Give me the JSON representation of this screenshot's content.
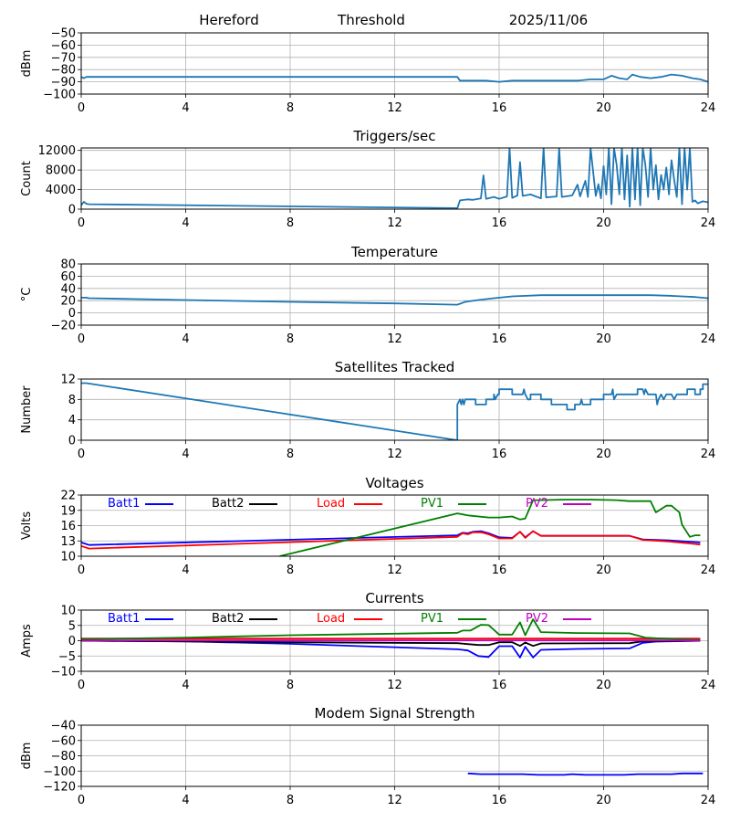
{
  "header": {
    "station": "Hereford",
    "mode": "Threshold",
    "date": "2025/11/06"
  },
  "x_axis": {
    "range": [
      0,
      24
    ],
    "ticks": [
      0,
      4,
      8,
      12,
      16,
      20,
      24
    ],
    "tick_labels": [
      "0",
      "4",
      "8",
      "12",
      "16",
      "20",
      "24"
    ]
  },
  "chart_data": [
    {
      "id": "threshold",
      "type": "line",
      "title": "",
      "ylabel": "dBm",
      "ylim": [
        -100,
        -50
      ],
      "yticks": [
        -50,
        -60,
        -70,
        -80,
        -90,
        -100
      ],
      "ytick_labels": [
        "−50",
        "−60",
        "−70",
        "−80",
        "−90",
        "−100"
      ],
      "legend": [],
      "series": [
        {
          "name": "Threshold",
          "color": "#1f77b4",
          "x": [
            0,
            0.1,
            0.2,
            14.4,
            14.5,
            15,
            15.5,
            16,
            16.5,
            17,
            17.5,
            18,
            18.5,
            19,
            19.5,
            20,
            20.3,
            20.6,
            20.9,
            21.1,
            21.4,
            21.8,
            22.2,
            22.6,
            23,
            23.4,
            23.7,
            24
          ],
          "y": [
            -86,
            -87,
            -86,
            -86,
            -89,
            -89,
            -89,
            -90,
            -89,
            -89,
            -89,
            -89,
            -89,
            -89,
            -88,
            -88,
            -85,
            -87,
            -88,
            -84,
            -86,
            -87,
            -86,
            -84,
            -85,
            -87,
            -88,
            -90
          ]
        }
      ]
    },
    {
      "id": "triggers",
      "type": "line",
      "title": "Triggers/sec",
      "ylabel": "Count",
      "ylim": [
        0,
        12500
      ],
      "yticks": [
        0,
        4000,
        8000,
        12000
      ],
      "ytick_labels": [
        "0",
        "4000",
        "8000",
        "12000"
      ],
      "legend": [],
      "series": [
        {
          "name": "Triggers",
          "color": "#1f77b4",
          "x": [
            0,
            0.1,
            0.2,
            0.3,
            14.4,
            14.5,
            14.8,
            15.0,
            15.3,
            15.4,
            15.5,
            15.8,
            16.0,
            16.3,
            16.4,
            16.5,
            16.7,
            16.8,
            16.9,
            17.2,
            17.6,
            17.7,
            17.8,
            18.2,
            18.3,
            18.4,
            18.8,
            19.0,
            19.1,
            19.3,
            19.4,
            19.5,
            19.7,
            19.8,
            19.9,
            20.0,
            20.1,
            20.2,
            20.3,
            20.4,
            20.5,
            20.6,
            20.7,
            20.8,
            20.9,
            21.0,
            21.1,
            21.2,
            21.3,
            21.4,
            21.5,
            21.6,
            21.7,
            21.8,
            21.9,
            22.0,
            22.1,
            22.2,
            22.3,
            22.4,
            22.5,
            22.6,
            22.7,
            22.8,
            22.9,
            23.0,
            23.1,
            23.2,
            23.3,
            23.4,
            23.5,
            23.6,
            23.8,
            24.0
          ],
          "y": [
            800,
            1500,
            1100,
            1000,
            200,
            1800,
            2000,
            1900,
            2200,
            6900,
            2100,
            2500,
            2100,
            2600,
            12500,
            2300,
            2800,
            9600,
            2700,
            3000,
            2200,
            12500,
            2400,
            2600,
            12500,
            2500,
            2800,
            5000,
            2600,
            5800,
            2500,
            12500,
            2700,
            5100,
            2200,
            8800,
            3000,
            12500,
            1000,
            12500,
            9000,
            3000,
            12500,
            2000,
            11000,
            500,
            12500,
            2000,
            12500,
            800,
            12500,
            9000,
            2500,
            12500,
            4000,
            9000,
            2000,
            7000,
            4000,
            8500,
            3000,
            10000,
            6000,
            2500,
            12500,
            1000,
            12500,
            4000,
            12500,
            1500,
            1800,
            1200,
            1600,
            1400
          ]
        }
      ]
    },
    {
      "id": "temperature",
      "type": "line",
      "title": "Temperature",
      "ylabel": "°C",
      "ylim": [
        -20,
        80
      ],
      "yticks": [
        -20,
        0,
        20,
        40,
        60,
        80
      ],
      "ytick_labels": [
        "−20",
        "0",
        "20",
        "40",
        "60",
        "80"
      ],
      "legend": [],
      "series": [
        {
          "name": "Temperature",
          "color": "#1f77b4",
          "x": [
            0,
            0.2,
            0.3,
            4,
            8,
            12,
            14.4,
            14.7,
            15.2,
            15.8,
            16.5,
            17.6,
            18.5,
            20,
            21,
            21.8,
            22.5,
            23,
            23.5,
            24
          ],
          "y": [
            25,
            25,
            24,
            21,
            18,
            15.5,
            13.5,
            18,
            21,
            24,
            27,
            29,
            29,
            29,
            29,
            29,
            28,
            27,
            26,
            24
          ]
        }
      ]
    },
    {
      "id": "satellites",
      "type": "line",
      "title": "Satellites Tracked",
      "ylabel": "Number",
      "ylim": [
        0,
        12
      ],
      "yticks": [
        0,
        4,
        8,
        12
      ],
      "ytick_labels": [
        "0",
        "4",
        "8",
        "12"
      ],
      "legend": [],
      "series": [
        {
          "name": "Satellites",
          "color": "#1f77b4",
          "x": [
            0,
            0.2,
            14.4,
            14.4,
            14.5,
            14.55,
            14.6,
            14.65,
            14.7,
            14.8,
            15.1,
            15.1,
            15.5,
            15.5,
            15.8,
            15.8,
            15.85,
            15.95,
            16.0,
            16.0,
            16.5,
            16.5,
            16.9,
            16.95,
            17.0,
            17.1,
            17.2,
            17.2,
            17.6,
            17.6,
            18.0,
            18.0,
            18.6,
            18.6,
            18.9,
            18.9,
            19.1,
            19.15,
            19.2,
            19.5,
            19.5,
            20.0,
            20.0,
            20.3,
            20.35,
            20.4,
            20.5,
            21.3,
            21.3,
            21.5,
            21.55,
            21.6,
            21.7,
            22.0,
            22.05,
            22.1,
            22.2,
            22.3,
            22.4,
            22.6,
            22.7,
            22.8,
            23.2,
            23.2,
            23.5,
            23.5,
            23.7,
            23.7,
            23.8,
            23.8,
            24
          ],
          "y": [
            11.2,
            11.2,
            0,
            7,
            8,
            7,
            8,
            7,
            8,
            8,
            8,
            7,
            7,
            8,
            8,
            9,
            8,
            9,
            9,
            10,
            10,
            9,
            9,
            10,
            9,
            8,
            8,
            9,
            9,
            8,
            8,
            7,
            7,
            6,
            6,
            7,
            7,
            8,
            7,
            7,
            8,
            8,
            9,
            9,
            10,
            8,
            9,
            9,
            10,
            10,
            9,
            10,
            9,
            9,
            7,
            8,
            9,
            8,
            9,
            9,
            8,
            9,
            9,
            10,
            10,
            9,
            9,
            10,
            10,
            11,
            11
          ]
        }
      ]
    },
    {
      "id": "voltages",
      "type": "line",
      "title": "Voltages",
      "ylabel": "Volts",
      "ylim": [
        10,
        22
      ],
      "yticks": [
        10,
        13,
        16,
        19,
        22
      ],
      "ytick_labels": [
        "10",
        "13",
        "16",
        "19",
        "22"
      ],
      "legend": [
        "Batt1",
        "Batt2",
        "Load",
        "PV1",
        "PV2"
      ],
      "series": [
        {
          "name": "Batt1",
          "color": "#0000ff",
          "x": [
            0,
            0.3,
            14.4,
            14.6,
            14.8,
            15.0,
            15.3,
            15.6,
            16.0,
            16.5,
            16.8,
            17.0,
            17.3,
            17.6,
            21.0,
            21.5,
            22.5,
            23.7
          ],
          "y": [
            12.7,
            12.2,
            14.1,
            14.6,
            14.5,
            14.8,
            14.9,
            14.5,
            13.7,
            13.6,
            14.8,
            13.7,
            14.9,
            14.0,
            14.0,
            13.3,
            13.1,
            12.7
          ]
        },
        {
          "name": "Load",
          "color": "#ff0000",
          "x": [
            0,
            0.3,
            14.4,
            14.6,
            14.8,
            15.0,
            15.3,
            15.6,
            16.0,
            16.5,
            16.8,
            17.0,
            17.3,
            17.6,
            21.0,
            21.5,
            22.5,
            23.7
          ],
          "y": [
            12.0,
            11.5,
            13.8,
            14.5,
            14.3,
            14.7,
            14.7,
            14.3,
            13.5,
            13.5,
            14.8,
            13.6,
            14.9,
            14.0,
            14.0,
            13.2,
            12.9,
            12.3
          ]
        },
        {
          "name": "PV1",
          "color": "#008000",
          "x": [
            7.6,
            14.4,
            14.8,
            15.6,
            16.0,
            16.5,
            16.8,
            17.0,
            17.3,
            17.6,
            18.5,
            19.5,
            20.5,
            21.0,
            21.8,
            22.0,
            22.4,
            22.6,
            22.9,
            23.0,
            23.3,
            23.5,
            23.7
          ],
          "y": [
            10.0,
            18.4,
            18.0,
            17.6,
            17.6,
            17.8,
            17.2,
            17.4,
            21.0,
            21.0,
            21.1,
            21.1,
            21.0,
            20.8,
            20.8,
            18.6,
            19.9,
            19.9,
            18.6,
            16.2,
            13.8,
            14.1,
            14.1
          ]
        },
        {
          "name": "PV2",
          "color": "#c000c0",
          "x": [],
          "y": []
        }
      ]
    },
    {
      "id": "currents",
      "type": "line",
      "title": "Currents",
      "ylabel": "Amps",
      "ylim": [
        -10,
        10
      ],
      "yticks": [
        -10,
        -5,
        0,
        5,
        10
      ],
      "ytick_labels": [
        "−10",
        "−5",
        "0",
        "5",
        "10"
      ],
      "legend": [
        "Batt1",
        "Batt2",
        "Load",
        "PV1",
        "PV2"
      ],
      "series": [
        {
          "name": "Batt1",
          "color": "#0000ff",
          "x": [
            0,
            4,
            8,
            14.4,
            14.8,
            15.2,
            15.6,
            16.0,
            16.5,
            16.8,
            17.0,
            17.3,
            17.6,
            19.0,
            21.0,
            21.5,
            22.0,
            23.7
          ],
          "y": [
            0.0,
            -0.2,
            -1.0,
            -2.8,
            -3.2,
            -5.0,
            -5.3,
            -1.8,
            -1.8,
            -5.5,
            -2.0,
            -5.5,
            -3.0,
            -2.7,
            -2.5,
            -0.7,
            -0.3,
            0.0
          ]
        },
        {
          "name": "Batt2",
          "color": "#000000",
          "x": [
            0,
            8,
            14.4,
            15.2,
            15.6,
            16.0,
            16.5,
            16.8,
            17.0,
            17.3,
            17.6,
            21.0,
            21.5,
            23.7
          ],
          "y": [
            0.0,
            -0.5,
            -0.8,
            -1.4,
            -1.4,
            -0.5,
            -0.5,
            -1.7,
            -0.6,
            -1.7,
            -0.9,
            -0.8,
            -0.2,
            0.0
          ]
        },
        {
          "name": "Load",
          "color": "#ff0000",
          "x": [
            0,
            23.7
          ],
          "y": [
            0.7,
            0.7
          ]
        },
        {
          "name": "PV1",
          "color": "#008000",
          "x": [
            0,
            4,
            8,
            14.4,
            14.6,
            14.9,
            15.3,
            15.6,
            16.0,
            16.5,
            16.8,
            17.0,
            17.3,
            17.6,
            19.0,
            21.0,
            21.6,
            22.0,
            23.7
          ],
          "y": [
            0.5,
            1.0,
            1.8,
            2.6,
            3.3,
            3.3,
            5.2,
            5.1,
            2.0,
            2.0,
            6.0,
            1.8,
            7.0,
            2.8,
            2.5,
            2.4,
            1.0,
            0.8,
            0.3
          ]
        },
        {
          "name": "PV2",
          "color": "#c000c0",
          "x": [
            0,
            23.7
          ],
          "y": [
            0.1,
            0.1
          ]
        }
      ]
    },
    {
      "id": "modem",
      "type": "line",
      "title": "Modem Signal Strength",
      "ylabel": "dBm",
      "ylim": [
        -120,
        -40
      ],
      "yticks": [
        -120,
        -100,
        -80,
        -60,
        -40
      ],
      "ytick_labels": [
        "−120",
        "−100",
        "−80",
        "−60",
        "−40"
      ],
      "legend": [],
      "series": [
        {
          "name": "Modem",
          "color": "#0000ff",
          "x": [
            14.8,
            15.3,
            16.0,
            16.9,
            17.5,
            18.5,
            18.8,
            19.3,
            20.0,
            20.8,
            21.3,
            22.0,
            22.6,
            23.0,
            23.8
          ],
          "y": [
            -103,
            -104,
            -104,
            -104,
            -105,
            -105,
            -104,
            -105,
            -105,
            -105,
            -104,
            -104,
            -104,
            -103,
            -103
          ]
        }
      ]
    }
  ]
}
